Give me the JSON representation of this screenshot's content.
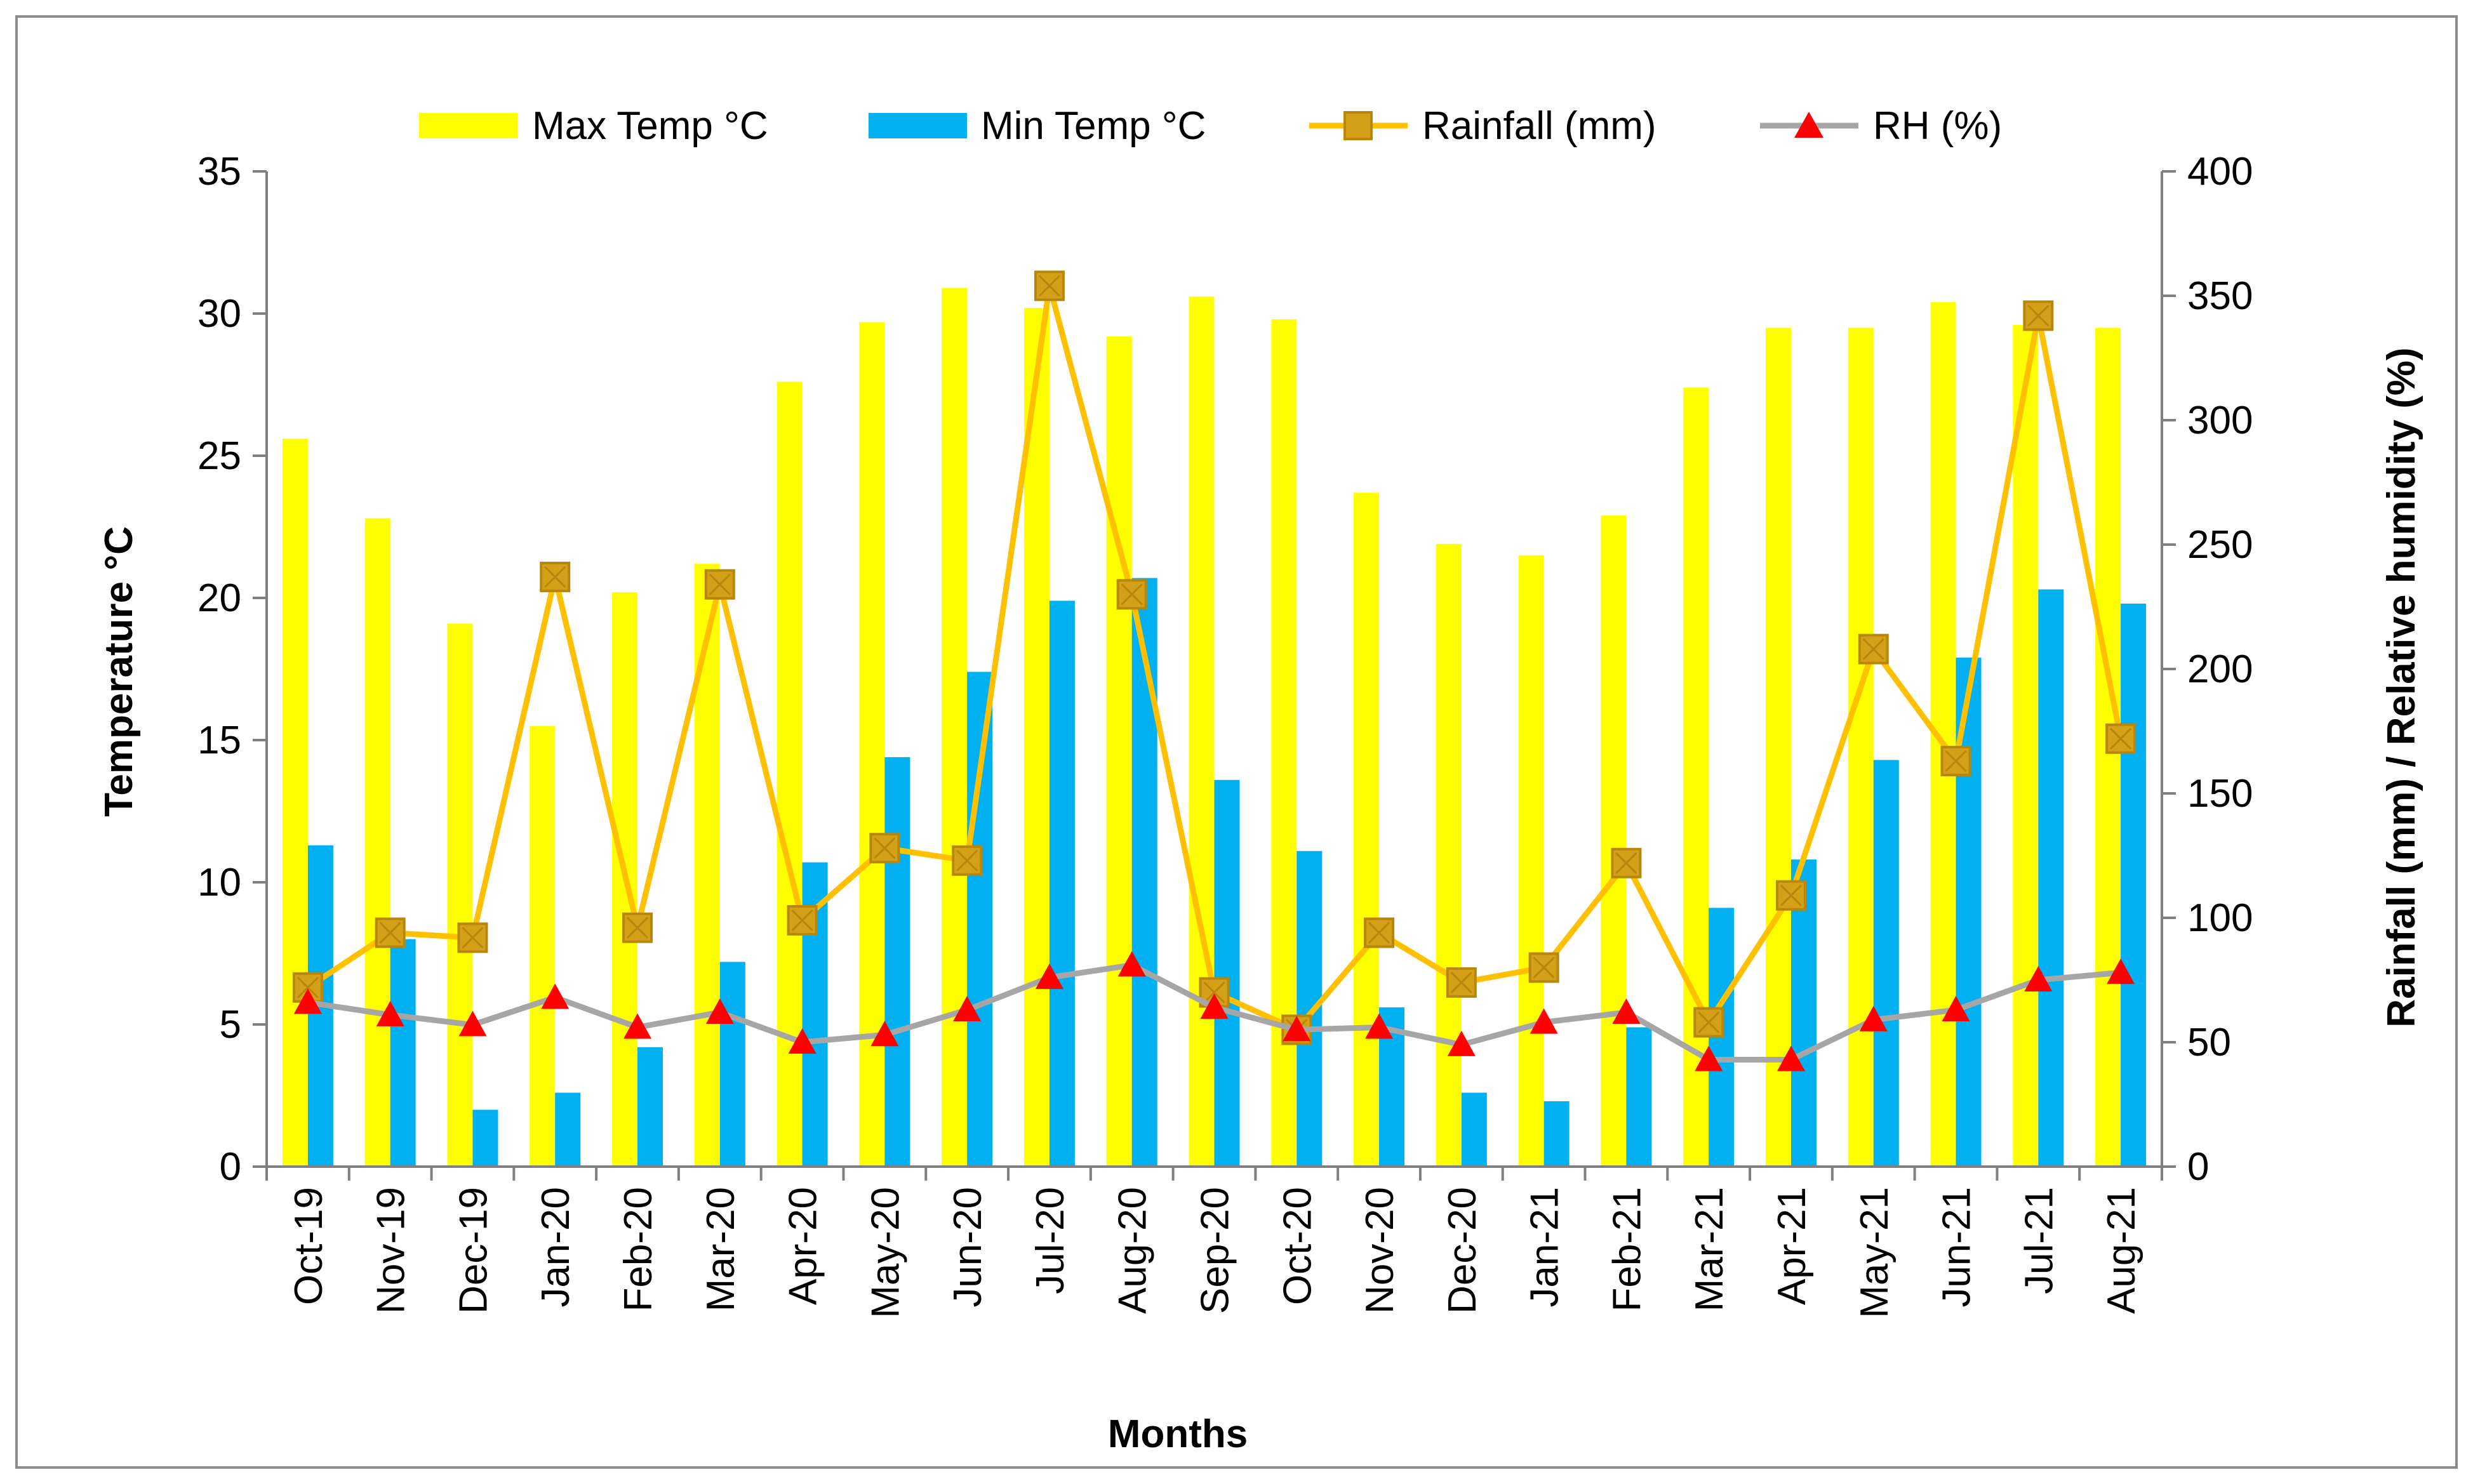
{
  "chart_data": {
    "type": "bar",
    "categories": [
      "Oct-19",
      "Nov-19",
      "Dec-19",
      "Jan-20",
      "Feb-20",
      "Mar-20",
      "Apr-20",
      "May-20",
      "Jun-20",
      "Jul-20",
      "Aug-20",
      "Sep-20",
      "Oct-20",
      "Nov-20",
      "Dec-20",
      "Jan-21",
      "Feb-21",
      "Mar-21",
      "Apr-21",
      "May-21",
      "Jun-21",
      "Jul-21",
      "Aug-21"
    ],
    "series": [
      {
        "name": "Max Temp °C",
        "kind": "bar",
        "axis": "left",
        "color": "#FFFF00",
        "values": [
          25.6,
          22.8,
          19.1,
          15.5,
          20.2,
          21.2,
          27.6,
          29.7,
          30.9,
          30.2,
          29.2,
          30.6,
          29.8,
          23.7,
          21.9,
          21.5,
          22.9,
          27.4,
          29.5,
          29.5,
          30.4,
          29.6,
          29.5
        ]
      },
      {
        "name": "Min Temp °C",
        "kind": "bar",
        "axis": "left",
        "color": "#00B0F0",
        "values": [
          11.3,
          8.0,
          2.0,
          2.6,
          4.2,
          7.2,
          10.7,
          14.4,
          17.4,
          19.9,
          20.7,
          13.6,
          11.1,
          5.6,
          2.6,
          2.3,
          4.9,
          9.1,
          10.8,
          14.3,
          17.9,
          20.3,
          19.8
        ]
      },
      {
        "name": "Rainfall (mm)",
        "kind": "line",
        "axis": "right",
        "color": "#FFC000",
        "marker": "square",
        "marker_color": "#D4A017",
        "values": [
          72,
          94,
          92,
          237,
          96,
          234,
          99,
          128,
          123,
          354,
          230,
          70,
          55,
          94,
          74,
          80,
          122,
          58,
          109,
          208,
          163,
          342,
          172
        ]
      },
      {
        "name": "RH (%)",
        "kind": "line",
        "axis": "right",
        "color": "#A6A6A6",
        "marker": "triangle",
        "marker_color": "#FF0000",
        "values": [
          66,
          61,
          57,
          68,
          56,
          62,
          50,
          53,
          63,
          76,
          81,
          64,
          55,
          56,
          49,
          58,
          62,
          43,
          43,
          59,
          63,
          75,
          78
        ]
      }
    ],
    "xlabel": "Months",
    "ylabel": "Temperature °C",
    "y2label": "Rainfall (mm) / Relative humidity (%)",
    "ylim": [
      0,
      35
    ],
    "y2lim": [
      0,
      400
    ],
    "yticks": [
      "0",
      "5",
      "10",
      "15",
      "20",
      "25",
      "30",
      "35"
    ],
    "y2ticks": [
      "0",
      "50",
      "100",
      "150",
      "200",
      "250",
      "300",
      "350",
      "400"
    ],
    "legend_position": "top",
    "grid": false
  }
}
